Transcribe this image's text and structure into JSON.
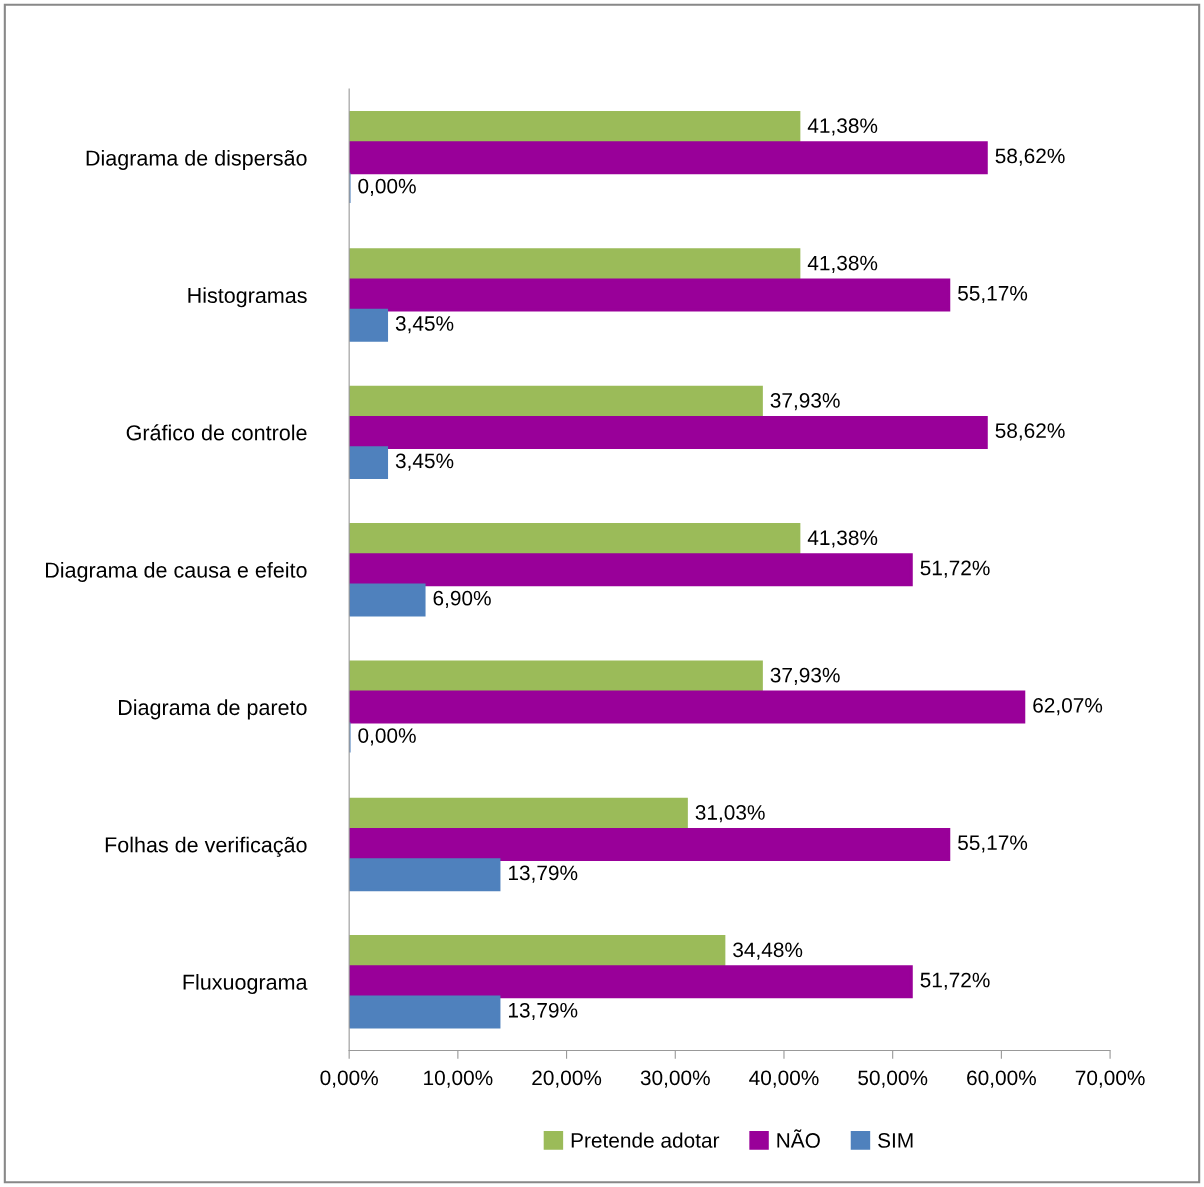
{
  "chart_data": {
    "type": "bar",
    "orientation": "horizontal",
    "categories": [
      "Diagrama de dispersão",
      "Histogramas",
      "Gráfico de controle",
      "Diagrama de causa e efeito",
      "Diagrama de pareto",
      "Folhas de verificação",
      "Fluxuograma"
    ],
    "series": [
      {
        "name": "Pretende adotar",
        "color": "#9bbb59",
        "values": [
          41.38,
          41.38,
          37.93,
          41.38,
          37.93,
          31.03,
          34.48
        ],
        "value_labels": [
          "41,38%",
          "41,38%",
          "37,93%",
          "41,38%",
          "37,93%",
          "31,03%",
          "34,48%"
        ]
      },
      {
        "name": "NÃO",
        "color": "#990099",
        "values": [
          58.62,
          55.17,
          58.62,
          51.72,
          62.07,
          55.17,
          51.72
        ],
        "value_labels": [
          "58,62%",
          "55,17%",
          "58,62%",
          "51,72%",
          "62,07%",
          "55,17%",
          "51,72%"
        ]
      },
      {
        "name": "SIM",
        "color": "#4f81bd",
        "values": [
          0,
          3.45,
          3.45,
          6.9,
          0,
          13.79,
          13.79
        ],
        "value_labels": [
          "0,00%",
          "3,45%",
          "3,45%",
          "6,90%",
          "0,00%",
          "13,79%",
          "13,79%"
        ]
      }
    ],
    "xlim": [
      0,
      70
    ],
    "xticks": [
      {
        "value": 0,
        "label": "0,00%"
      },
      {
        "value": 10,
        "label": "10,00%"
      },
      {
        "value": 20,
        "label": "20,00%"
      },
      {
        "value": 30,
        "label": "30,00%"
      },
      {
        "value": 40,
        "label": "40,00%"
      },
      {
        "value": 50,
        "label": "50,00%"
      },
      {
        "value": 60,
        "label": "60,00%"
      },
      {
        "value": 70,
        "label": "70,00%"
      }
    ],
    "grid": false,
    "legend": "bottom"
  }
}
